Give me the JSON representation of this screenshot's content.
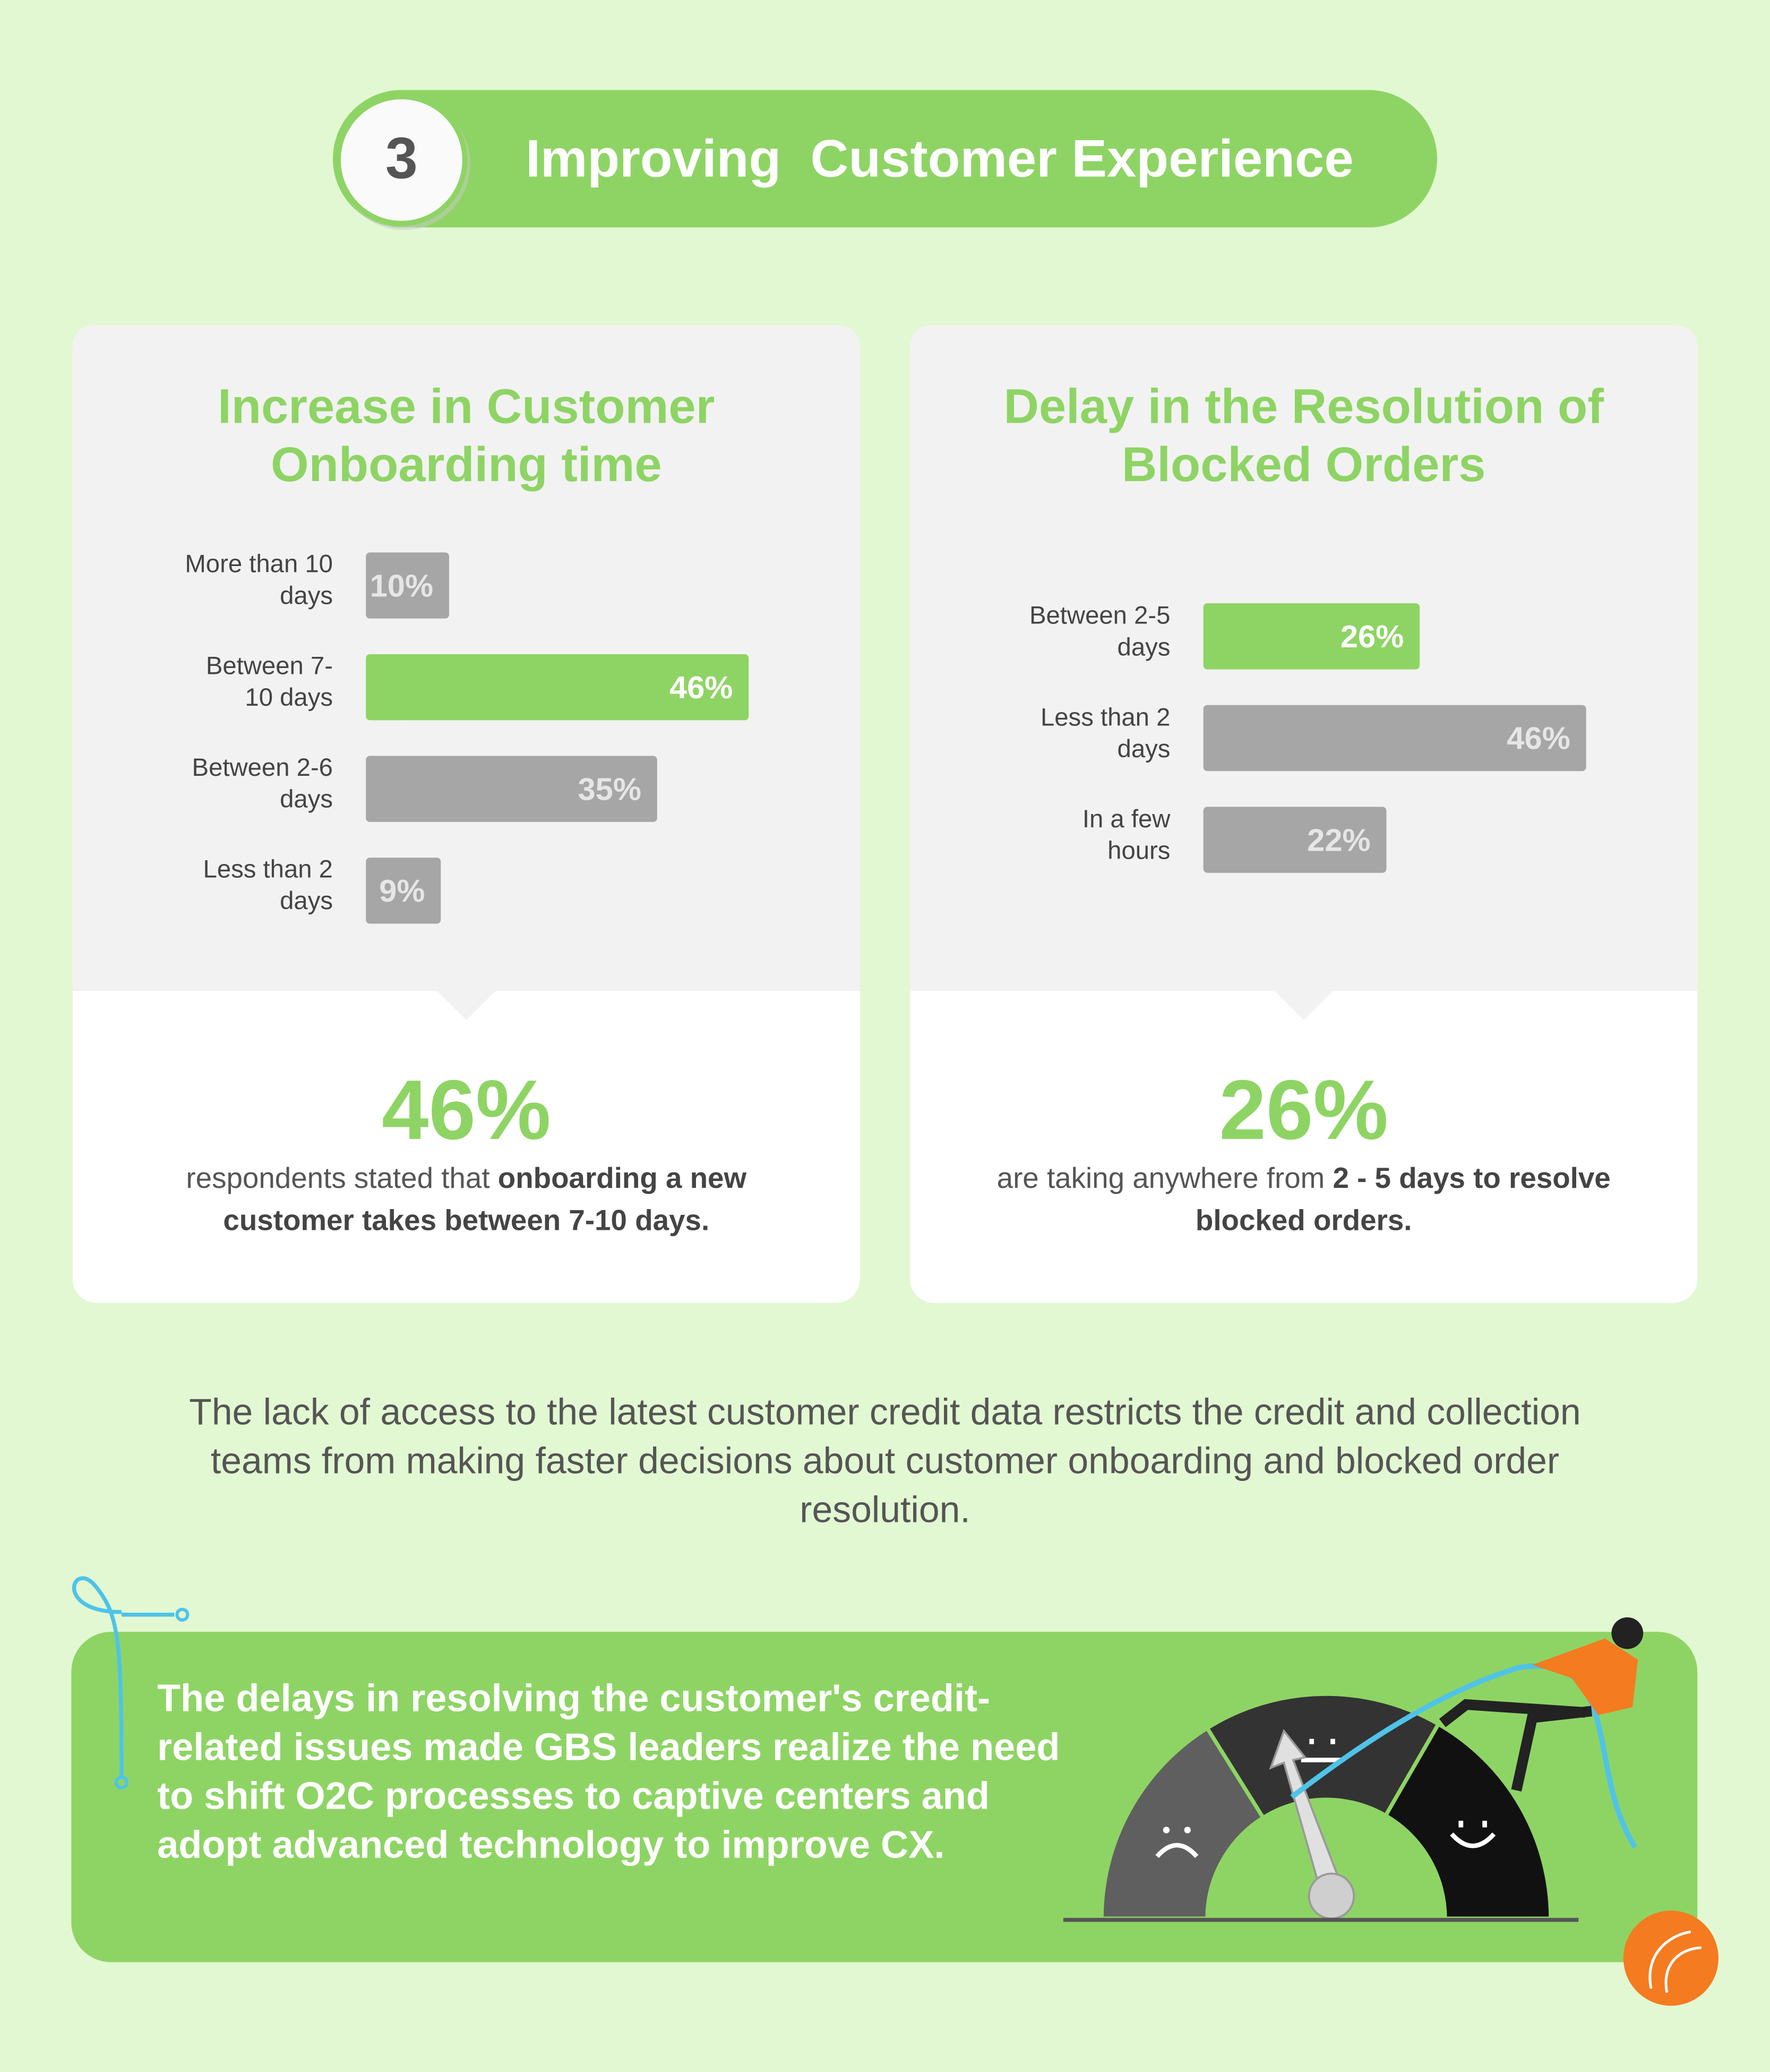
{
  "header": {
    "number": "3",
    "title": "Improving  Customer Experience"
  },
  "chart_data": [
    {
      "type": "bar",
      "orientation": "horizontal",
      "title": "Increase in Customer Onboarding time",
      "categories": [
        "More than 10 days",
        "Between 7-10 days",
        "Between 2-6 days",
        "Less than 2 days"
      ],
      "values": [
        10,
        46,
        35,
        9
      ],
      "value_labels": [
        "10%",
        "46%",
        "35%",
        "9%"
      ],
      "colors": [
        "#a6a6a6",
        "#8ed464",
        "#a6a6a6",
        "#a6a6a6"
      ],
      "highlight": {
        "figure": "46%",
        "text": "respondents stated that ",
        "bold_text": "onboarding a new customer takes between 7-10 days."
      }
    },
    {
      "type": "bar",
      "orientation": "horizontal",
      "title": "Delay in the Resolution of Blocked Orders",
      "categories": [
        "Between 2-5 days",
        "Less than 2 days",
        "In a few hours"
      ],
      "values": [
        26,
        46,
        22
      ],
      "value_labels": [
        "26%",
        "46%",
        "22%"
      ],
      "colors": [
        "#8ed464",
        "#a6a6a6",
        "#a6a6a6"
      ],
      "highlight": {
        "figure": "26%",
        "text": "are taking anywhere from ",
        "bold_text": "2 - 5 days to resolve blocked orders."
      }
    }
  ],
  "paragraph": "The lack of access to the latest customer credit data restricts the credit and collection teams from making faster decisions about customer onboarding and blocked order resolution.",
  "banner": "The delays in resolving the customer's credit-related issues made GBS leaders realize the need to shift O2C processes to captive centers and adopt advanced technology to improve CX."
}
